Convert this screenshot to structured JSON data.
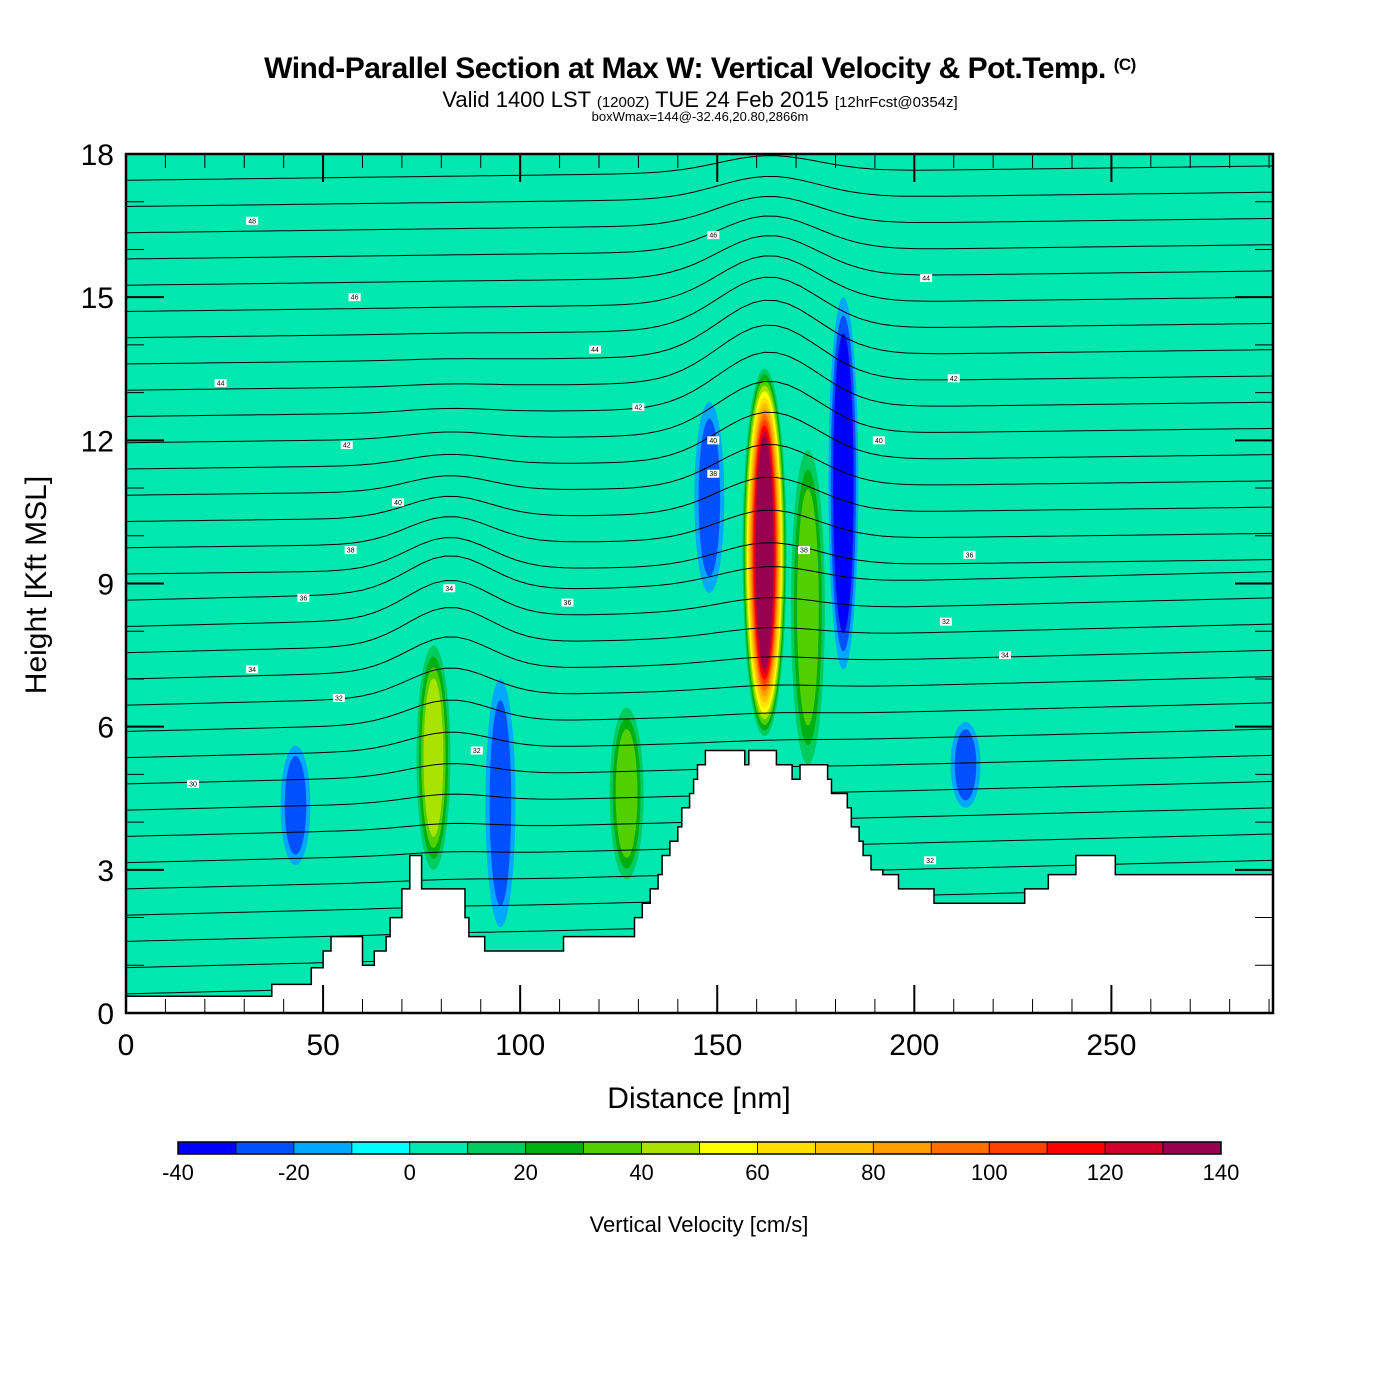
{
  "chart_data": {
    "type": "heatmap",
    "title": "Wind-Parallel Section at Max W: Vertical Velocity & Pot.Temp.",
    "title_mark": "(C)",
    "subtitle_parts": [
      "Valid 1400 LST",
      "(1200Z)",
      "TUE 24 Feb 2015",
      "[12hrFcst@0354z]"
    ],
    "subtitle2": "boxWmax=144@-32.46,20.80,2866m",
    "xlabel": "Distance [nm]",
    "ylabel": "Height [Kft MSL]",
    "xlim": [
      0,
      291
    ],
    "ylim": [
      0,
      18
    ],
    "x_ticks": [
      "0",
      "50",
      "100",
      "150",
      "200",
      "250"
    ],
    "x_tick_values": [
      0,
      50,
      100,
      150,
      200,
      250
    ],
    "y_ticks": [
      "0",
      "3",
      "6",
      "9",
      "12",
      "15",
      "18"
    ],
    "y_tick_values": [
      0,
      3,
      6,
      9,
      12,
      15,
      18
    ],
    "colorbar": {
      "title": "Vertical Velocity [cm/s]",
      "bounds": [
        -40,
        -30,
        -20,
        -10,
        0,
        10,
        20,
        30,
        40,
        50,
        60,
        70,
        80,
        90,
        100,
        110,
        120,
        130,
        140
      ],
      "labels": [
        "-40",
        "-20",
        "0",
        "20",
        "40",
        "60",
        "80",
        "100",
        "120",
        "140"
      ],
      "label_values": [
        -40,
        -20,
        0,
        20,
        40,
        60,
        80,
        100,
        120,
        140
      ],
      "colors": [
        "#0000ff",
        "#0050ff",
        "#00a8ff",
        "#00ffff",
        "#00e8b0",
        "#00cc60",
        "#00b010",
        "#50d000",
        "#a8e400",
        "#ffff00",
        "#ffe000",
        "#ffc000",
        "#ffa000",
        "#ff7000",
        "#ff4000",
        "#ff0000",
        "#d0002a",
        "#980050"
      ]
    },
    "background_value_cm_s": 0,
    "features": [
      {
        "name": "updraft-core",
        "x_nm": 162,
        "y_kft_min": 5.8,
        "y_kft_max": 13.5,
        "peak_cm_s": 144
      },
      {
        "name": "updraft-secondary",
        "x_nm": 173,
        "y_kft_min": 5.2,
        "y_kft_max": 11.8,
        "peak_cm_s": 30
      },
      {
        "name": "updraft-west",
        "x_nm": 78,
        "y_kft_min": 3.0,
        "y_kft_max": 7.7,
        "peak_cm_s": 45
      },
      {
        "name": "updraft-small",
        "x_nm": 127,
        "y_kft_min": 2.8,
        "y_kft_max": 6.4,
        "peak_cm_s": 30
      },
      {
        "name": "downdraft-lee",
        "x_nm": 182,
        "y_kft_min": 7.2,
        "y_kft_max": 15.0,
        "peak_cm_s": -40
      },
      {
        "name": "downdraft-upwind",
        "x_nm": 148,
        "y_kft_min": 8.8,
        "y_kft_max": 12.8,
        "peak_cm_s": -20
      },
      {
        "name": "downdraft-west-slope",
        "x_nm": 43,
        "y_kft_min": 3.1,
        "y_kft_max": 5.6,
        "peak_cm_s": -20
      },
      {
        "name": "downdraft-west-2",
        "x_nm": 95,
        "y_kft_min": 1.8,
        "y_kft_max": 7.0,
        "peak_cm_s": -20
      },
      {
        "name": "downdraft-east-pool",
        "x_nm": 213,
        "y_kft_min": 4.3,
        "y_kft_max": 6.1,
        "peak_cm_s": -20
      }
    ],
    "terrain_profile": {
      "x_nm": [
        0,
        35,
        37,
        45,
        47,
        50,
        52,
        57,
        60,
        61,
        63,
        65,
        66,
        67,
        70,
        72,
        74,
        75,
        77,
        80,
        83,
        86,
        87,
        89,
        91,
        93,
        96,
        97,
        101,
        103,
        111,
        113,
        127,
        129,
        131,
        133,
        135,
        136,
        138,
        140,
        141,
        143,
        144,
        145,
        147,
        149,
        150,
        152,
        154,
        156,
        157,
        158,
        160,
        161,
        162,
        165,
        166,
        168,
        169,
        171,
        173,
        175,
        176,
        178,
        179,
        183,
        184,
        186,
        187,
        189,
        191,
        192,
        194,
        196,
        198,
        201,
        203,
        205,
        209,
        211,
        219,
        224,
        228,
        232,
        234,
        237,
        241,
        243,
        249,
        251,
        262,
        291
      ],
      "height_kft": [
        0.35,
        0.35,
        0.6,
        0.6,
        0.95,
        1.3,
        1.6,
        1.6,
        1.0,
        1.0,
        1.3,
        1.3,
        1.6,
        2.0,
        2.6,
        3.3,
        3.3,
        2.6,
        2.6,
        2.6,
        2.6,
        2.0,
        1.6,
        1.6,
        1.3,
        1.3,
        1.3,
        1.3,
        1.3,
        1.3,
        1.6,
        1.6,
        1.6,
        2.0,
        2.3,
        2.6,
        2.9,
        3.3,
        3.6,
        3.9,
        4.3,
        4.6,
        4.9,
        5.2,
        5.5,
        5.5,
        5.5,
        5.5,
        5.5,
        5.5,
        5.2,
        5.5,
        5.5,
        5.5,
        5.5,
        5.2,
        5.2,
        5.2,
        4.9,
        5.2,
        5.2,
        5.2,
        5.2,
        4.9,
        4.6,
        4.3,
        3.9,
        3.6,
        3.3,
        3.0,
        3.0,
        2.9,
        2.9,
        2.6,
        2.6,
        2.6,
        2.6,
        2.3,
        2.3,
        2.3,
        2.3,
        2.3,
        2.6,
        2.6,
        2.9,
        2.9,
        3.3,
        3.3,
        3.3,
        2.9,
        2.9,
        2.9
      ]
    },
    "isentrope_labels": [
      {
        "text": "48",
        "x_nm": 32,
        "y_kft": 16.6
      },
      {
        "text": "46",
        "x_nm": 58,
        "y_kft": 15.0
      },
      {
        "text": "44",
        "x_nm": 24,
        "y_kft": 13.2
      },
      {
        "text": "42",
        "x_nm": 56,
        "y_kft": 11.9
      },
      {
        "text": "40",
        "x_nm": 69,
        "y_kft": 10.7
      },
      {
        "text": "38",
        "x_nm": 57,
        "y_kft": 9.7
      },
      {
        "text": "36",
        "x_nm": 45,
        "y_kft": 8.7
      },
      {
        "text": "34",
        "x_nm": 32,
        "y_kft": 7.2
      },
      {
        "text": "32",
        "x_nm": 54,
        "y_kft": 6.6
      },
      {
        "text": "30",
        "x_nm": 17,
        "y_kft": 4.8
      },
      {
        "text": "34",
        "x_nm": 82,
        "y_kft": 8.9
      },
      {
        "text": "36",
        "x_nm": 112,
        "y_kft": 8.6
      },
      {
        "text": "32",
        "x_nm": 89,
        "y_kft": 5.5
      },
      {
        "text": "44",
        "x_nm": 119,
        "y_kft": 13.9
      },
      {
        "text": "42",
        "x_nm": 130,
        "y_kft": 12.7
      },
      {
        "text": "46",
        "x_nm": 149,
        "y_kft": 16.3
      },
      {
        "text": "40",
        "x_nm": 149,
        "y_kft": 12.0
      },
      {
        "text": "38",
        "x_nm": 149,
        "y_kft": 11.3
      },
      {
        "text": "38",
        "x_nm": 172,
        "y_kft": 9.7
      },
      {
        "text": "44",
        "x_nm": 203,
        "y_kft": 15.4
      },
      {
        "text": "42",
        "x_nm": 210,
        "y_kft": 13.3
      },
      {
        "text": "40",
        "x_nm": 191,
        "y_kft": 12.0
      },
      {
        "text": "36",
        "x_nm": 214,
        "y_kft": 9.6
      },
      {
        "text": "32",
        "x_nm": 208,
        "y_kft": 8.2
      },
      {
        "text": "34",
        "x_nm": 223,
        "y_kft": 7.5
      },
      {
        "text": "32",
        "x_nm": 204,
        "y_kft": 3.2
      }
    ]
  }
}
